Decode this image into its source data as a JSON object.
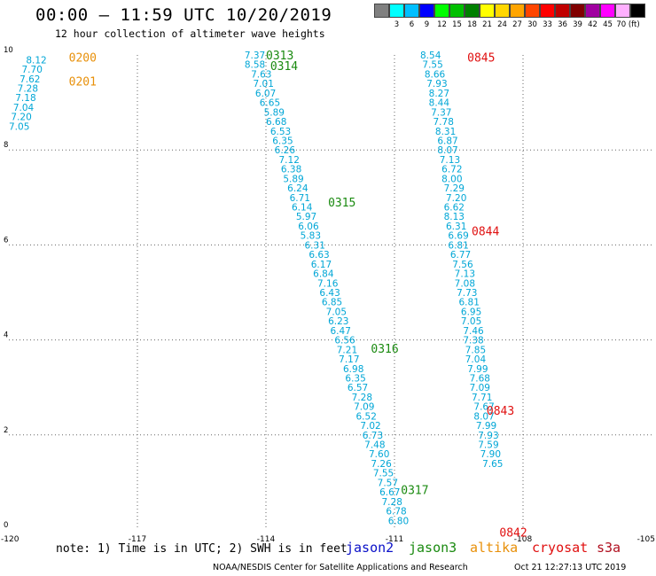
{
  "header": {
    "title": "00:00 – 11:59 UTC 10/20/2019",
    "subtitle": "12 hour collection of altimeter wave heights"
  },
  "colorbar": {
    "colors": [
      "#808080",
      "#00ffff",
      "#00bfff",
      "#0000ff",
      "#00ff00",
      "#00c000",
      "#008000",
      "#ffff00",
      "#ffd700",
      "#ffa500",
      "#ff4500",
      "#ff0000",
      "#c00000",
      "#800000",
      "#a000a0",
      "#ff00ff",
      "#ffb0ff",
      "#000000"
    ],
    "labels": [
      "3",
      "6",
      "9",
      "12",
      "15",
      "18",
      "21",
      "24",
      "27",
      "30",
      "33",
      "36",
      "39",
      "42",
      "45",
      "70 (ft)"
    ]
  },
  "chart_data": {
    "type": "scatter",
    "xlim": [
      -120,
      -105
    ],
    "ylim": [
      0,
      10
    ],
    "grid": true,
    "x_ticks": [
      "-120",
      "-117",
      "-114",
      "-111",
      "-108",
      "-105"
    ],
    "y_ticks": [
      "0",
      "2",
      "4",
      "6",
      "8",
      "10"
    ],
    "series": [
      {
        "name": "altika",
        "color": "#00a6d6",
        "points": [
          {
            "x": -119.6,
            "y": 9.9,
            "v": "8.12"
          },
          {
            "x": -119.7,
            "y": 9.7,
            "v": "7.70"
          },
          {
            "x": -119.75,
            "y": 9.5,
            "v": "7.62"
          },
          {
            "x": -119.8,
            "y": 9.3,
            "v": "7.28"
          },
          {
            "x": -119.85,
            "y": 9.1,
            "v": "7.18"
          },
          {
            "x": -119.9,
            "y": 8.9,
            "v": "7.04"
          },
          {
            "x": -119.95,
            "y": 8.7,
            "v": "7.20"
          },
          {
            "x": -120.0,
            "y": 8.5,
            "v": "7.05"
          }
        ]
      },
      {
        "name": "jason3",
        "color": "#00a6d6",
        "points": [
          {
            "x": -114.5,
            "y": 10.0,
            "v": "7.37"
          },
          {
            "x": -114.5,
            "y": 9.8,
            "v": "8.58"
          },
          {
            "x": -114.35,
            "y": 9.6,
            "v": "7.63"
          },
          {
            "x": -114.3,
            "y": 9.4,
            "v": "7.01"
          },
          {
            "x": -114.25,
            "y": 9.2,
            "v": "6.07"
          },
          {
            "x": -114.15,
            "y": 9.0,
            "v": "6.65"
          },
          {
            "x": -114.05,
            "y": 8.8,
            "v": "5.89"
          },
          {
            "x": -114.0,
            "y": 8.6,
            "v": "6.68"
          },
          {
            "x": -113.9,
            "y": 8.4,
            "v": "6.53"
          },
          {
            "x": -113.85,
            "y": 8.2,
            "v": "6.35"
          },
          {
            "x": -113.8,
            "y": 8.0,
            "v": "6.26"
          },
          {
            "x": -113.7,
            "y": 7.8,
            "v": "7.12"
          },
          {
            "x": -113.65,
            "y": 7.6,
            "v": "6.38"
          },
          {
            "x": -113.6,
            "y": 7.4,
            "v": "5.89"
          },
          {
            "x": -113.5,
            "y": 7.2,
            "v": "6.24"
          },
          {
            "x": -113.45,
            "y": 7.0,
            "v": "6.71"
          },
          {
            "x": -113.4,
            "y": 6.8,
            "v": "6.14"
          },
          {
            "x": -113.3,
            "y": 6.6,
            "v": "5.97"
          },
          {
            "x": -113.25,
            "y": 6.4,
            "v": "6.06"
          },
          {
            "x": -113.2,
            "y": 6.2,
            "v": "5.83"
          },
          {
            "x": -113.1,
            "y": 6.0,
            "v": "6.31"
          },
          {
            "x": -113.0,
            "y": 5.8,
            "v": "6.63"
          },
          {
            "x": -112.95,
            "y": 5.6,
            "v": "6.17"
          },
          {
            "x": -112.9,
            "y": 5.4,
            "v": "6.84"
          },
          {
            "x": -112.8,
            "y": 5.2,
            "v": "7.16"
          },
          {
            "x": -112.75,
            "y": 5.0,
            "v": "6.43"
          },
          {
            "x": -112.7,
            "y": 4.8,
            "v": "6.85"
          },
          {
            "x": -112.6,
            "y": 4.6,
            "v": "7.05"
          },
          {
            "x": -112.55,
            "y": 4.4,
            "v": "6.23"
          },
          {
            "x": -112.5,
            "y": 4.2,
            "v": "6.47"
          },
          {
            "x": -112.4,
            "y": 4.0,
            "v": "6.56"
          },
          {
            "x": -112.35,
            "y": 3.8,
            "v": "7.21"
          },
          {
            "x": -112.3,
            "y": 3.6,
            "v": "7.17"
          },
          {
            "x": -112.2,
            "y": 3.4,
            "v": "6.98"
          },
          {
            "x": -112.15,
            "y": 3.2,
            "v": "6.35"
          },
          {
            "x": -112.1,
            "y": 3.0,
            "v": "6.57"
          },
          {
            "x": -112.0,
            "y": 2.8,
            "v": "7.28"
          },
          {
            "x": -111.95,
            "y": 2.6,
            "v": "7.09"
          },
          {
            "x": -111.9,
            "y": 2.4,
            "v": "6.52"
          },
          {
            "x": -111.8,
            "y": 2.2,
            "v": "7.02"
          },
          {
            "x": -111.75,
            "y": 2.0,
            "v": "6.73"
          },
          {
            "x": -111.7,
            "y": 1.8,
            "v": "7.48"
          },
          {
            "x": -111.6,
            "y": 1.6,
            "v": "7.60"
          },
          {
            "x": -111.55,
            "y": 1.4,
            "v": "7.26"
          },
          {
            "x": -111.5,
            "y": 1.2,
            "v": "7.55"
          },
          {
            "x": -111.4,
            "y": 1.0,
            "v": "7.57"
          },
          {
            "x": -111.35,
            "y": 0.8,
            "v": "6.67"
          },
          {
            "x": -111.3,
            "y": 0.6,
            "v": "7.28"
          },
          {
            "x": -111.2,
            "y": 0.4,
            "v": "6.78"
          },
          {
            "x": -111.15,
            "y": 0.2,
            "v": "6.80"
          }
        ]
      },
      {
        "name": "cryosat",
        "color": "#00a6d6",
        "points": [
          {
            "x": -110.4,
            "y": 10.0,
            "v": "8.54"
          },
          {
            "x": -110.35,
            "y": 9.8,
            "v": "7.55"
          },
          {
            "x": -110.3,
            "y": 9.6,
            "v": "8.66"
          },
          {
            "x": -110.25,
            "y": 9.4,
            "v": "7.93"
          },
          {
            "x": -110.2,
            "y": 9.2,
            "v": "8.27"
          },
          {
            "x": -110.2,
            "y": 9.0,
            "v": "8.44"
          },
          {
            "x": -110.15,
            "y": 8.8,
            "v": "7.37"
          },
          {
            "x": -110.1,
            "y": 8.6,
            "v": "7.78"
          },
          {
            "x": -110.05,
            "y": 8.4,
            "v": "8.31"
          },
          {
            "x": -110.0,
            "y": 8.2,
            "v": "6.87"
          },
          {
            "x": -110.0,
            "y": 8.0,
            "v": "8.07"
          },
          {
            "x": -109.95,
            "y": 7.8,
            "v": "7.13"
          },
          {
            "x": -109.9,
            "y": 7.6,
            "v": "6.72"
          },
          {
            "x": -109.9,
            "y": 7.4,
            "v": "8.00"
          },
          {
            "x": -109.85,
            "y": 7.2,
            "v": "7.29"
          },
          {
            "x": -109.8,
            "y": 7.0,
            "v": "7.20"
          },
          {
            "x": -109.85,
            "y": 6.8,
            "v": "6.62"
          },
          {
            "x": -109.85,
            "y": 6.6,
            "v": "8.13"
          },
          {
            "x": -109.8,
            "y": 6.4,
            "v": "6.31"
          },
          {
            "x": -109.75,
            "y": 6.2,
            "v": "6.69"
          },
          {
            "x": -109.75,
            "y": 6.0,
            "v": "6.81"
          },
          {
            "x": -109.7,
            "y": 5.8,
            "v": "6.77"
          },
          {
            "x": -109.65,
            "y": 5.6,
            "v": "7.56"
          },
          {
            "x": -109.6,
            "y": 5.4,
            "v": "7.13"
          },
          {
            "x": -109.6,
            "y": 5.2,
            "v": "7.08"
          },
          {
            "x": -109.55,
            "y": 5.0,
            "v": "7.73"
          },
          {
            "x": -109.5,
            "y": 4.8,
            "v": "6.81"
          },
          {
            "x": -109.45,
            "y": 4.6,
            "v": "6.95"
          },
          {
            "x": -109.45,
            "y": 4.4,
            "v": "7.05"
          },
          {
            "x": -109.4,
            "y": 4.2,
            "v": "7.46"
          },
          {
            "x": -109.4,
            "y": 4.0,
            "v": "7.38"
          },
          {
            "x": -109.35,
            "y": 3.8,
            "v": "7.85"
          },
          {
            "x": -109.35,
            "y": 3.6,
            "v": "7.04"
          },
          {
            "x": -109.3,
            "y": 3.4,
            "v": "7.99"
          },
          {
            "x": -109.25,
            "y": 3.2,
            "v": "7.68"
          },
          {
            "x": -109.25,
            "y": 3.0,
            "v": "7.09"
          },
          {
            "x": -109.2,
            "y": 2.8,
            "v": "7.71"
          },
          {
            "x": -109.15,
            "y": 2.6,
            "v": "7.67"
          },
          {
            "x": -109.15,
            "y": 2.4,
            "v": "8.07"
          },
          {
            "x": -109.1,
            "y": 2.2,
            "v": "7.99"
          },
          {
            "x": -109.05,
            "y": 2.0,
            "v": "7.93"
          },
          {
            "x": -109.05,
            "y": 1.8,
            "v": "7.59"
          },
          {
            "x": -109.0,
            "y": 1.6,
            "v": "7.90"
          },
          {
            "x": -108.95,
            "y": 1.4,
            "v": "7.65"
          }
        ]
      }
    ],
    "time_labels": [
      {
        "t": "0200",
        "color": "#e8900a",
        "x": -118.6,
        "y": 9.95
      },
      {
        "t": "0201",
        "color": "#e8900a",
        "x": -118.6,
        "y": 9.45
      },
      {
        "t": "0313",
        "color": "#1a8a10",
        "x": -114.0,
        "y": 10.0
      },
      {
        "t": "0314",
        "color": "#1a8a10",
        "x": -113.9,
        "y": 9.78
      },
      {
        "t": "0315",
        "color": "#1a8a10",
        "x": -112.55,
        "y": 6.9
      },
      {
        "t": "0316",
        "color": "#1a8a10",
        "x": -111.55,
        "y": 3.82
      },
      {
        "t": "0317",
        "color": "#1a8a10",
        "x": -110.85,
        "y": 0.85
      },
      {
        "t": "0845",
        "color": "#e01010",
        "x": -109.3,
        "y": 9.95
      },
      {
        "t": "0844",
        "color": "#e01010",
        "x": -109.2,
        "y": 6.3
      },
      {
        "t": "0843",
        "color": "#e01010",
        "x": -108.85,
        "y": 2.52
      },
      {
        "t": "0842",
        "color": "#e01010",
        "x": -108.55,
        "y": -0.05
      }
    ]
  },
  "footer": {
    "note": "note: 1) Time is in UTC; 2) SWH is in feet",
    "satellites": [
      {
        "name": "jason2",
        "color": "#0a10c8"
      },
      {
        "name": "jason3",
        "color": "#1a8a10"
      },
      {
        "name": "altika",
        "color": "#e8900a"
      },
      {
        "name": "cryosat",
        "color": "#e01010"
      },
      {
        "name": "s3a",
        "color": "#b01020"
      }
    ],
    "credit": "NOAA/NESDIS Center for Satellite Applications and Research",
    "timestamp": "Oct 21 12:27:13 UTC 2019"
  }
}
